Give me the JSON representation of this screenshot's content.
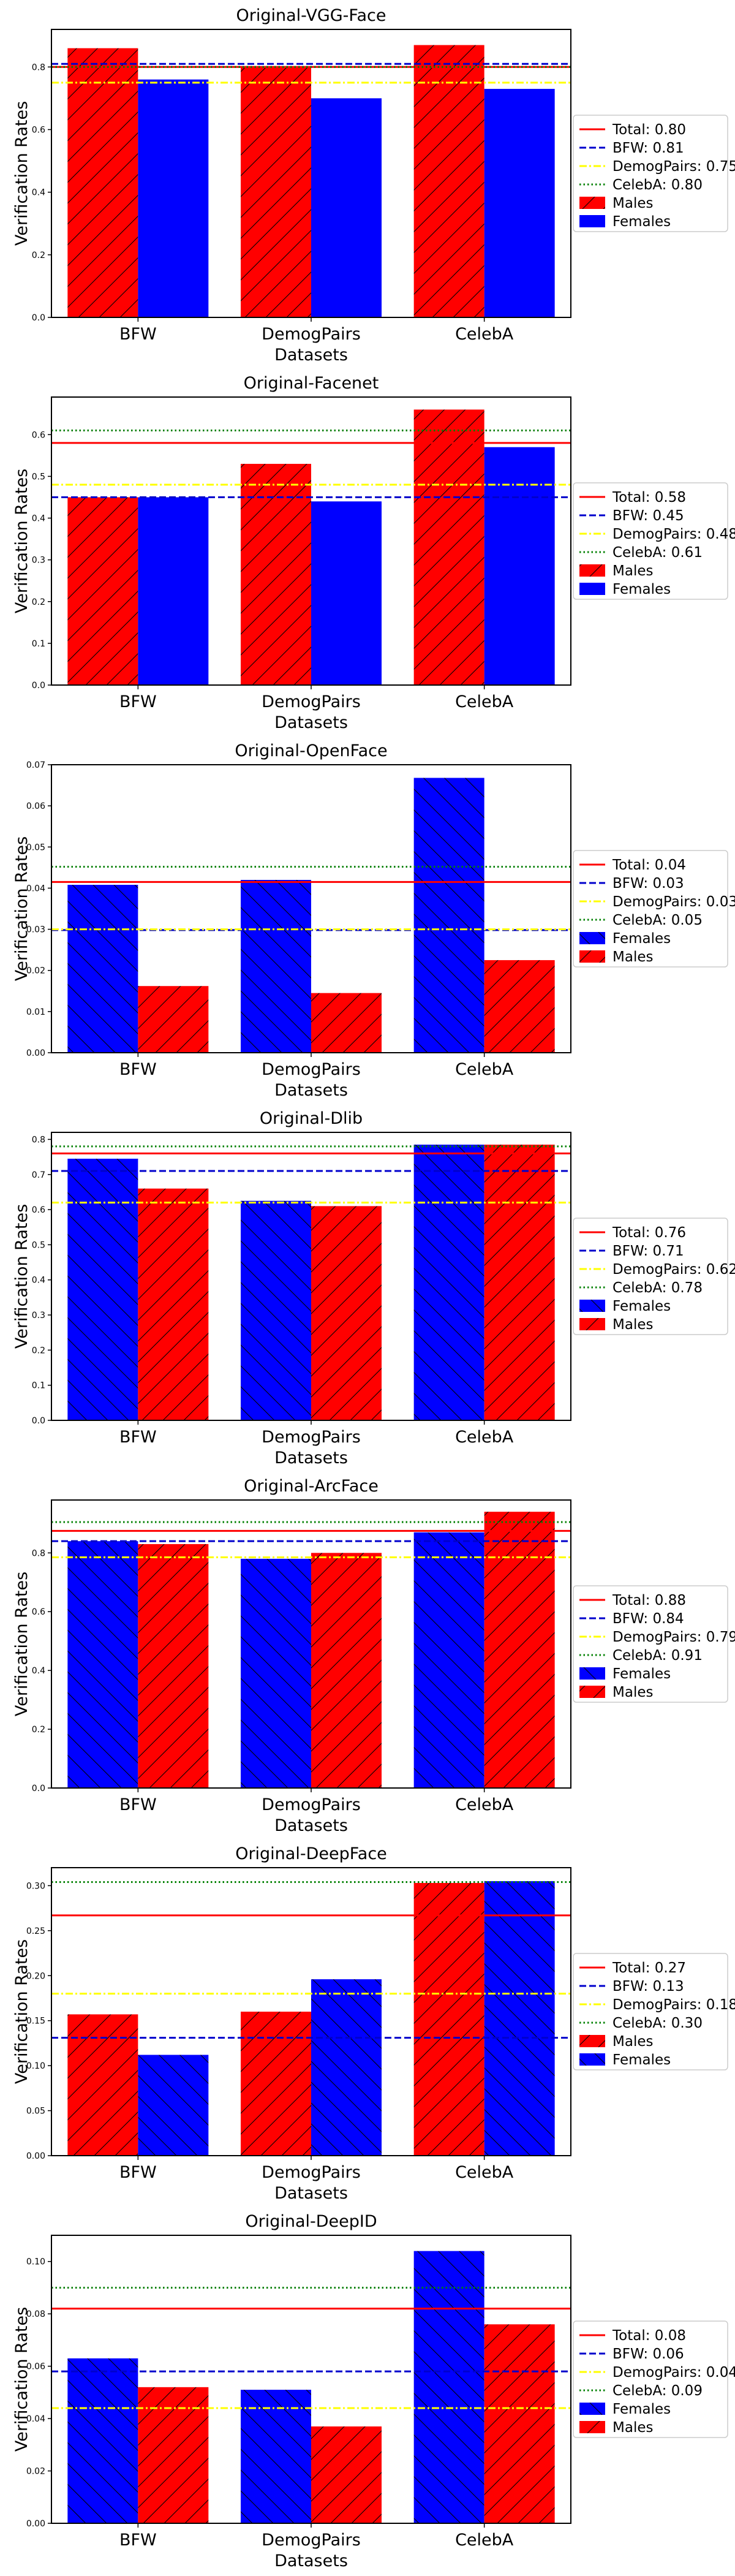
{
  "chart_data": [
    {
      "type": "bar",
      "title": "Original-VGG-Face",
      "xlabel": "Datasets",
      "ylabel": "Verification Rates",
      "categories": [
        "BFW",
        "DemogPairs",
        "CelebA"
      ],
      "ylim": [
        0,
        0.92
      ],
      "yticks": [
        0.0,
        0.2,
        0.4,
        0.6,
        0.8
      ],
      "ytick_labels": [
        "0.0",
        "0.2",
        "0.4",
        "0.6",
        "0.8"
      ],
      "series": [
        {
          "name": "Males",
          "color": "#ff0000",
          "hatch": "/",
          "values": [
            0.86,
            0.8,
            0.87
          ]
        },
        {
          "name": "Females",
          "color": "#0000ff",
          "hatch": "none",
          "values": [
            0.76,
            0.7,
            0.73
          ]
        }
      ],
      "hlines": [
        {
          "label": "Total: 0.80",
          "value": 0.8,
          "color": "#ff0000",
          "style": "solid"
        },
        {
          "label": "BFW: 0.81",
          "value": 0.81,
          "color": "#0000cc",
          "style": "dashed"
        },
        {
          "label": "DemogPairs: 0.75",
          "value": 0.75,
          "color": "#ffff00",
          "style": "dashdot"
        },
        {
          "label": "CelebA: 0.80",
          "value": 0.8,
          "color": "#008000",
          "style": "dotted"
        }
      ],
      "legend_order": [
        {
          "type": "line",
          "ref": 0
        },
        {
          "type": "line",
          "ref": 1
        },
        {
          "type": "line",
          "ref": 2
        },
        {
          "type": "line",
          "ref": 3
        },
        {
          "type": "bar",
          "ref": 0
        },
        {
          "type": "bar",
          "ref": 1
        }
      ],
      "grid": false,
      "legend_position": "right"
    },
    {
      "type": "bar",
      "title": "Original-Facenet",
      "xlabel": "Datasets",
      "ylabel": "Verification Rates",
      "categories": [
        "BFW",
        "DemogPairs",
        "CelebA"
      ],
      "ylim": [
        0,
        0.69
      ],
      "yticks": [
        0.0,
        0.1,
        0.2,
        0.3,
        0.4,
        0.5,
        0.6
      ],
      "ytick_labels": [
        "0.0",
        "0.1",
        "0.2",
        "0.3",
        "0.4",
        "0.5",
        "0.6"
      ],
      "series": [
        {
          "name": "Males",
          "color": "#ff0000",
          "hatch": "/",
          "values": [
            0.45,
            0.53,
            0.66
          ]
        },
        {
          "name": "Females",
          "color": "#0000ff",
          "hatch": "none",
          "values": [
            0.45,
            0.44,
            0.57
          ]
        }
      ],
      "hlines": [
        {
          "label": "Total: 0.58",
          "value": 0.58,
          "color": "#ff0000",
          "style": "solid"
        },
        {
          "label": "BFW: 0.45",
          "value": 0.45,
          "color": "#0000cc",
          "style": "dashed"
        },
        {
          "label": "DemogPairs: 0.48",
          "value": 0.48,
          "color": "#ffff00",
          "style": "dashdot"
        },
        {
          "label": "CelebA: 0.61",
          "value": 0.61,
          "color": "#008000",
          "style": "dotted"
        }
      ],
      "legend_order": [
        {
          "type": "line",
          "ref": 0
        },
        {
          "type": "line",
          "ref": 1
        },
        {
          "type": "line",
          "ref": 2
        },
        {
          "type": "line",
          "ref": 3
        },
        {
          "type": "bar",
          "ref": 0
        },
        {
          "type": "bar",
          "ref": 1
        }
      ],
      "grid": false,
      "legend_position": "right"
    },
    {
      "type": "bar",
      "title": "Original-OpenFace",
      "xlabel": "Datasets",
      "ylabel": "Verification Rates",
      "categories": [
        "BFW",
        "DemogPairs",
        "CelebA"
      ],
      "ylim": [
        0,
        0.07
      ],
      "yticks": [
        0.0,
        0.01,
        0.02,
        0.03,
        0.04,
        0.05,
        0.06,
        0.07
      ],
      "ytick_labels": [
        "0.00",
        "0.01",
        "0.02",
        "0.03",
        "0.04",
        "0.05",
        "0.06",
        "0.07"
      ],
      "series": [
        {
          "name": "Females",
          "color": "#0000ff",
          "hatch": "\\",
          "values": [
            0.0408,
            0.042,
            0.0668
          ]
        },
        {
          "name": "Males",
          "color": "#ff0000",
          "hatch": "/",
          "values": [
            0.0162,
            0.0145,
            0.0225
          ]
        }
      ],
      "hlines": [
        {
          "label": "Total: 0.04",
          "value": 0.0415,
          "color": "#ff0000",
          "style": "solid"
        },
        {
          "label": "BFW: 0.03",
          "value": 0.0298,
          "color": "#0000cc",
          "style": "dashed"
        },
        {
          "label": "DemogPairs: 0.03",
          "value": 0.03,
          "color": "#ffff00",
          "style": "dashdot"
        },
        {
          "label": "CelebA: 0.05",
          "value": 0.0452,
          "color": "#008000",
          "style": "dotted"
        }
      ],
      "legend_order": [
        {
          "type": "line",
          "ref": 0
        },
        {
          "type": "line",
          "ref": 1
        },
        {
          "type": "line",
          "ref": 2
        },
        {
          "type": "line",
          "ref": 3
        },
        {
          "type": "bar",
          "ref": 0
        },
        {
          "type": "bar",
          "ref": 1
        }
      ],
      "grid": false,
      "legend_position": "right"
    },
    {
      "type": "bar",
      "title": "Original-Dlib",
      "xlabel": "Datasets",
      "ylabel": "Verification Rates",
      "categories": [
        "BFW",
        "DemogPairs",
        "CelebA"
      ],
      "ylim": [
        0,
        0.82
      ],
      "yticks": [
        0.0,
        0.1,
        0.2,
        0.3,
        0.4,
        0.5,
        0.6,
        0.7,
        0.8
      ],
      "ytick_labels": [
        "0.0",
        "0.1",
        "0.2",
        "0.3",
        "0.4",
        "0.5",
        "0.6",
        "0.7",
        "0.8"
      ],
      "series": [
        {
          "name": "Females",
          "color": "#0000ff",
          "hatch": "\\",
          "values": [
            0.745,
            0.625,
            0.785
          ]
        },
        {
          "name": "Males",
          "color": "#ff0000",
          "hatch": "/",
          "values": [
            0.66,
            0.61,
            0.785
          ]
        }
      ],
      "hlines": [
        {
          "label": "Total: 0.76",
          "value": 0.76,
          "color": "#ff0000",
          "style": "solid"
        },
        {
          "label": "BFW: 0.71",
          "value": 0.71,
          "color": "#0000cc",
          "style": "dashed"
        },
        {
          "label": "DemogPairs: 0.62",
          "value": 0.62,
          "color": "#ffff00",
          "style": "dashdot"
        },
        {
          "label": "CelebA: 0.78",
          "value": 0.78,
          "color": "#008000",
          "style": "dotted"
        }
      ],
      "legend_order": [
        {
          "type": "line",
          "ref": 0
        },
        {
          "type": "line",
          "ref": 1
        },
        {
          "type": "line",
          "ref": 2
        },
        {
          "type": "line",
          "ref": 3
        },
        {
          "type": "bar",
          "ref": 0
        },
        {
          "type": "bar",
          "ref": 1
        }
      ],
      "grid": false,
      "legend_position": "right"
    },
    {
      "type": "bar",
      "title": "Original-ArcFace",
      "xlabel": "Datasets",
      "ylabel": "Verification Rates",
      "categories": [
        "BFW",
        "DemogPairs",
        "CelebA"
      ],
      "ylim": [
        0,
        0.98
      ],
      "yticks": [
        0.0,
        0.2,
        0.4,
        0.6,
        0.8
      ],
      "ytick_labels": [
        "0.0",
        "0.2",
        "0.4",
        "0.6",
        "0.8"
      ],
      "series": [
        {
          "name": "Females",
          "color": "#0000ff",
          "hatch": "\\",
          "values": [
            0.84,
            0.78,
            0.87
          ]
        },
        {
          "name": "Males",
          "color": "#ff0000",
          "hatch": "/",
          "values": [
            0.83,
            0.8,
            0.94
          ]
        }
      ],
      "hlines": [
        {
          "label": "Total: 0.88",
          "value": 0.875,
          "color": "#ff0000",
          "style": "solid"
        },
        {
          "label": "BFW: 0.84",
          "value": 0.84,
          "color": "#0000cc",
          "style": "dashed"
        },
        {
          "label": "DemogPairs: 0.79",
          "value": 0.785,
          "color": "#ffff00",
          "style": "dashdot"
        },
        {
          "label": "CelebA: 0.91",
          "value": 0.905,
          "color": "#008000",
          "style": "dotted"
        }
      ],
      "legend_order": [
        {
          "type": "line",
          "ref": 0
        },
        {
          "type": "line",
          "ref": 1
        },
        {
          "type": "line",
          "ref": 2
        },
        {
          "type": "line",
          "ref": 3
        },
        {
          "type": "bar",
          "ref": 0
        },
        {
          "type": "bar",
          "ref": 1
        }
      ],
      "grid": false,
      "legend_position": "right"
    },
    {
      "type": "bar",
      "title": "Original-DeepFace",
      "xlabel": "Datasets",
      "ylabel": "Verification Rates",
      "categories": [
        "BFW",
        "DemogPairs",
        "CelebA"
      ],
      "ylim": [
        0,
        0.32
      ],
      "yticks": [
        0.0,
        0.05,
        0.1,
        0.15,
        0.2,
        0.25,
        0.3
      ],
      "ytick_labels": [
        "0.00",
        "0.05",
        "0.10",
        "0.15",
        "0.20",
        "0.25",
        "0.30"
      ],
      "series": [
        {
          "name": "Males",
          "color": "#ff0000",
          "hatch": "/",
          "values": [
            0.157,
            0.16,
            0.303
          ]
        },
        {
          "name": "Females",
          "color": "#0000ff",
          "hatch": "\\",
          "values": [
            0.112,
            0.196,
            0.305
          ]
        }
      ],
      "hlines": [
        {
          "label": "Total: 0.27",
          "value": 0.267,
          "color": "#ff0000",
          "style": "solid"
        },
        {
          "label": "BFW: 0.13",
          "value": 0.131,
          "color": "#0000cc",
          "style": "dashed"
        },
        {
          "label": "DemogPairs: 0.18",
          "value": 0.18,
          "color": "#ffff00",
          "style": "dashdot"
        },
        {
          "label": "CelebA: 0.30",
          "value": 0.304,
          "color": "#008000",
          "style": "dotted"
        }
      ],
      "legend_order": [
        {
          "type": "line",
          "ref": 0
        },
        {
          "type": "line",
          "ref": 1
        },
        {
          "type": "line",
          "ref": 2
        },
        {
          "type": "line",
          "ref": 3
        },
        {
          "type": "bar",
          "ref": 0
        },
        {
          "type": "bar",
          "ref": 1
        }
      ],
      "grid": false,
      "legend_position": "right"
    },
    {
      "type": "bar",
      "title": "Original-DeepID",
      "xlabel": "Datasets",
      "ylabel": "Verification Rates",
      "categories": [
        "BFW",
        "DemogPairs",
        "CelebA"
      ],
      "ylim": [
        0,
        0.11
      ],
      "yticks": [
        0.0,
        0.02,
        0.04,
        0.06,
        0.08,
        0.1
      ],
      "ytick_labels": [
        "0.00",
        "0.02",
        "0.04",
        "0.06",
        "0.08",
        "0.10"
      ],
      "series": [
        {
          "name": "Females",
          "color": "#0000ff",
          "hatch": "\\",
          "values": [
            0.063,
            0.051,
            0.104
          ]
        },
        {
          "name": "Males",
          "color": "#ff0000",
          "hatch": "/",
          "values": [
            0.052,
            0.037,
            0.076
          ]
        }
      ],
      "hlines": [
        {
          "label": "Total: 0.08",
          "value": 0.082,
          "color": "#ff0000",
          "style": "solid"
        },
        {
          "label": "BFW: 0.06",
          "value": 0.058,
          "color": "#0000cc",
          "style": "dashed"
        },
        {
          "label": "DemogPairs: 0.04",
          "value": 0.044,
          "color": "#ffff00",
          "style": "dashdot"
        },
        {
          "label": "CelebA: 0.09",
          "value": 0.09,
          "color": "#008000",
          "style": "dotted"
        }
      ],
      "legend_order": [
        {
          "type": "line",
          "ref": 0
        },
        {
          "type": "line",
          "ref": 1
        },
        {
          "type": "line",
          "ref": 2
        },
        {
          "type": "line",
          "ref": 3
        },
        {
          "type": "bar",
          "ref": 0
        },
        {
          "type": "bar",
          "ref": 1
        }
      ],
      "grid": false,
      "legend_position": "right"
    }
  ]
}
